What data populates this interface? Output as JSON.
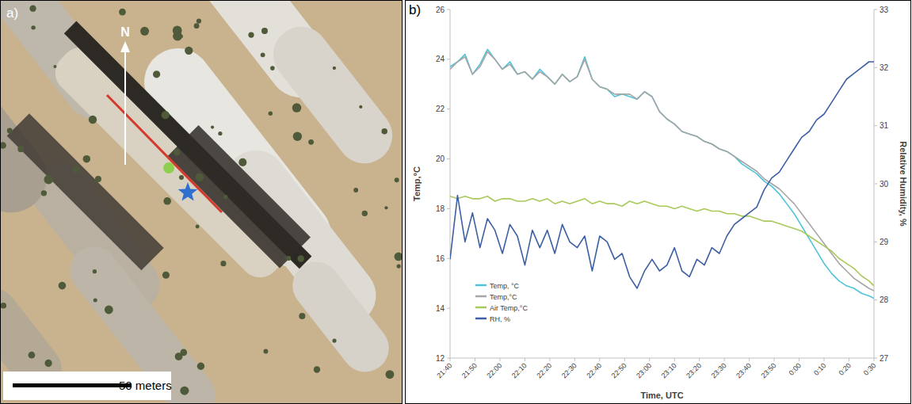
{
  "chart_data": {
    "type": "line",
    "x_label": "Time, UTC",
    "y_label": "Temp,°C",
    "y2_label": "Relative Humidity, %",
    "x": [
      1300,
      1303,
      1306,
      1309,
      1312,
      1315,
      1318,
      1321,
      1324,
      1327,
      1330,
      1333,
      1336,
      1339,
      1342,
      1345,
      1348,
      1351,
      1354,
      1357,
      1360,
      1363,
      1366,
      1369,
      1372,
      1375,
      1378,
      1381,
      1384,
      1387,
      1390,
      1393,
      1396,
      1399,
      1402,
      1405,
      1408,
      1411,
      1414,
      1417,
      1420,
      1423,
      1426,
      1429,
      1432,
      1435,
      1438,
      1441,
      1444,
      1447,
      1450,
      1453,
      1456,
      1459,
      1462,
      1465,
      1468,
      1470
    ],
    "xlim": [
      1300,
      1470
    ],
    "xticks": [
      {
        "value": 1300,
        "label": "21:40"
      },
      {
        "value": 1310,
        "label": "21:50"
      },
      {
        "value": 1320,
        "label": "22:00"
      },
      {
        "value": 1330,
        "label": "22:10"
      },
      {
        "value": 1340,
        "label": "22:20"
      },
      {
        "value": 1350,
        "label": "22:30"
      },
      {
        "value": 1360,
        "label": "22:40"
      },
      {
        "value": 1370,
        "label": "22:50"
      },
      {
        "value": 1380,
        "label": "23:00"
      },
      {
        "value": 1390,
        "label": "23:10"
      },
      {
        "value": 1400,
        "label": "23:20"
      },
      {
        "value": 1410,
        "label": "23:30"
      },
      {
        "value": 1420,
        "label": "23:40"
      },
      {
        "value": 1430,
        "label": "23:50"
      },
      {
        "value": 1440,
        "label": "0:00"
      },
      {
        "value": 1450,
        "label": "0:10"
      },
      {
        "value": 1460,
        "label": "0:20"
      },
      {
        "value": 1470,
        "label": "0:30"
      }
    ],
    "ylim": [
      12,
      26
    ],
    "yticks": [
      12,
      14,
      16,
      18,
      20,
      22,
      24,
      26
    ],
    "y2lim": [
      27,
      33
    ],
    "y2ticks": [
      27,
      28,
      29,
      30,
      31,
      32,
      33
    ],
    "legend": "lower left",
    "grid": false,
    "series": [
      {
        "name": "Temp, °C",
        "color": "#4fc3d9",
        "values": [
          23.7,
          23.9,
          24.2,
          23.4,
          23.8,
          24.4,
          24.0,
          23.6,
          23.9,
          23.4,
          23.5,
          23.2,
          23.6,
          23.3,
          23.0,
          23.4,
          23.1,
          23.3,
          24.1,
          23.2,
          22.9,
          22.8,
          22.5,
          22.6,
          22.5,
          22.4,
          22.7,
          22.5,
          21.9,
          21.6,
          21.4,
          21.1,
          21.0,
          20.9,
          20.7,
          20.6,
          20.4,
          20.3,
          20.1,
          19.8,
          19.6,
          19.4,
          19.1,
          18.9,
          18.6,
          18.2,
          17.8,
          17.3,
          16.8,
          16.3,
          15.8,
          15.4,
          15.1,
          14.9,
          14.8,
          14.6,
          14.5,
          14.4
        ]
      },
      {
        "name": "Temp,°C",
        "color": "#a6a6a6",
        "values": [
          23.6,
          23.9,
          24.1,
          23.4,
          23.7,
          24.3,
          24.0,
          23.6,
          23.8,
          23.4,
          23.5,
          23.2,
          23.5,
          23.3,
          23.0,
          23.4,
          23.1,
          23.3,
          24.0,
          23.2,
          22.9,
          22.8,
          22.6,
          22.6,
          22.6,
          22.4,
          22.7,
          22.5,
          21.9,
          21.6,
          21.4,
          21.1,
          21.0,
          20.9,
          20.7,
          20.6,
          20.4,
          20.3,
          20.1,
          19.9,
          19.7,
          19.5,
          19.2,
          19.0,
          18.8,
          18.5,
          18.2,
          17.8,
          17.4,
          17.0,
          16.6,
          16.2,
          15.8,
          15.5,
          15.2,
          15.0,
          14.8,
          14.7
        ]
      },
      {
        "name": "Air Temp,°C",
        "color": "#a9c95b",
        "values": [
          18.5,
          18.4,
          18.5,
          18.4,
          18.4,
          18.5,
          18.3,
          18.4,
          18.4,
          18.3,
          18.3,
          18.4,
          18.3,
          18.4,
          18.2,
          18.3,
          18.2,
          18.3,
          18.4,
          18.2,
          18.3,
          18.2,
          18.2,
          18.1,
          18.3,
          18.2,
          18.3,
          18.2,
          18.1,
          18.1,
          18.0,
          18.1,
          18.0,
          17.9,
          18.0,
          17.9,
          17.9,
          17.8,
          17.8,
          17.7,
          17.7,
          17.6,
          17.5,
          17.5,
          17.4,
          17.3,
          17.2,
          17.1,
          16.9,
          16.7,
          16.5,
          16.3,
          16.0,
          15.8,
          15.6,
          15.3,
          15.1,
          14.9
        ]
      },
      {
        "name": "RH, %",
        "color": "#3d5fa3",
        "axis": "y2",
        "values": [
          28.7,
          29.8,
          29.0,
          29.5,
          28.9,
          29.4,
          29.2,
          28.8,
          29.3,
          29.1,
          28.6,
          29.2,
          28.9,
          29.2,
          28.8,
          29.3,
          29.0,
          28.9,
          29.1,
          28.5,
          29.1,
          29.0,
          28.7,
          28.8,
          28.4,
          28.2,
          28.5,
          28.7,
          28.5,
          28.6,
          28.9,
          28.5,
          28.4,
          28.7,
          28.6,
          28.9,
          28.8,
          29.1,
          29.3,
          29.4,
          29.5,
          29.6,
          29.9,
          30.1,
          30.2,
          30.4,
          30.6,
          30.8,
          30.9,
          31.1,
          31.2,
          31.4,
          31.6,
          31.8,
          31.9,
          32.0,
          32.1,
          32.1
        ]
      }
    ]
  },
  "photo": {
    "letter": "a)",
    "north": "N",
    "scale_label": "50 meters"
  },
  "panel_letter": "b)"
}
